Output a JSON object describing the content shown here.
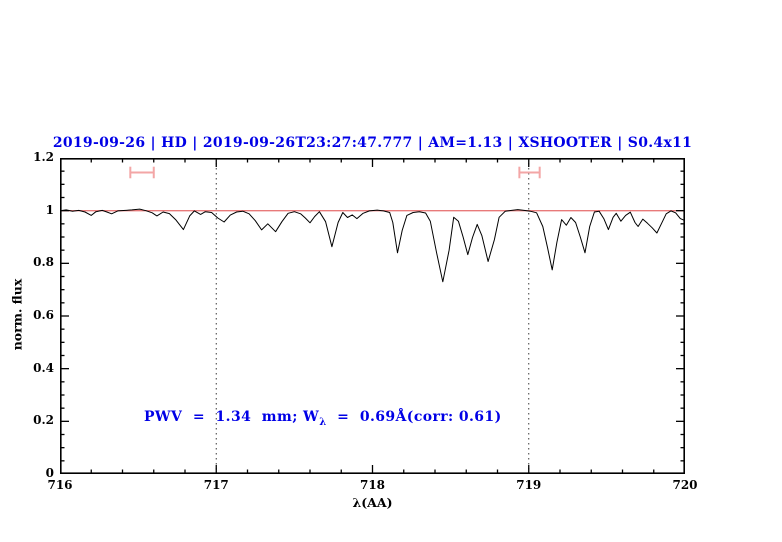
{
  "title": "2019-09-26 | HD | 2019-09-26T23:27:47.777 | AM=1.13 | XSHOOTER | S0.4x11",
  "annotation_parts": {
    "part1": "PWV  =  1.34  mm; W",
    "sub": "λ",
    "part2": "  =  0.69Å(corr: 0.61)"
  },
  "colors": {
    "title_blue": "#0000e6",
    "annotation_blue": "#0000e6",
    "continuum_red": "#e87a7a",
    "marker_pink": "#f3a6a6",
    "spectrum_black": "#000000",
    "dotted_line": "#3a3a3a",
    "frame": "#000000",
    "background": "#ffffff"
  },
  "chart_data": {
    "type": "line",
    "title": "2019-09-26 | HD | 2019-09-26T23:27:47.777 | AM=1.13 | XSHOOTER | S0.4x11",
    "xlabel": "λ(AA)",
    "ylabel": "norm. flux",
    "xlim": [
      716,
      720
    ],
    "ylim": [
      0,
      1.2
    ],
    "grid": false,
    "x_major_ticks": [
      716,
      717,
      718,
      719,
      720
    ],
    "x_tick_labels": [
      "716",
      "717",
      "718",
      "719",
      "720"
    ],
    "x_minor_step": 0.2,
    "y_major_ticks": [
      0,
      0.2,
      0.4,
      0.6,
      0.8,
      1.0,
      1.2
    ],
    "y_tick_labels": [
      "0",
      "0.2",
      "0.4",
      "0.6",
      "0.8",
      "1",
      "1.2"
    ],
    "y_minor_step": 0.05,
    "continuum_flux": 1.0,
    "vlines_dotted": [
      717,
      719
    ],
    "annotation": "PWV = 1.34 mm; W_λ = 0.69Å(corr: 0.61)",
    "annotation_position": {
      "x": 716.55,
      "y": 0.2
    },
    "range_markers": [
      {
        "x_from": 716.45,
        "x_to": 716.6,
        "y": 1.145,
        "cap_half": 0.022
      },
      {
        "x_from": 718.94,
        "x_to": 719.07,
        "y": 1.145,
        "cap_half": 0.022
      }
    ],
    "series": [
      {
        "name": "telluric spectrum",
        "points": [
          [
            716.0,
            1.0
          ],
          [
            716.04,
            1.003
          ],
          [
            716.08,
            0.998
          ],
          [
            716.12,
            1.001
          ],
          [
            716.16,
            0.995
          ],
          [
            716.2,
            0.982
          ],
          [
            716.23,
            0.996
          ],
          [
            716.27,
            1.001
          ],
          [
            716.3,
            0.995
          ],
          [
            716.33,
            0.988
          ],
          [
            716.37,
            0.999
          ],
          [
            716.42,
            1.001
          ],
          [
            716.46,
            1.003
          ],
          [
            716.51,
            1.006
          ],
          [
            716.55,
            1.0
          ],
          [
            716.59,
            0.992
          ],
          [
            716.62,
            0.98
          ],
          [
            716.66,
            0.995
          ],
          [
            716.7,
            0.989
          ],
          [
            716.74,
            0.966
          ],
          [
            716.79,
            0.928
          ],
          [
            716.83,
            0.98
          ],
          [
            716.86,
            0.999
          ],
          [
            716.9,
            0.986
          ],
          [
            716.93,
            0.996
          ],
          [
            716.97,
            0.993
          ],
          [
            717.01,
            0.972
          ],
          [
            717.05,
            0.957
          ],
          [
            717.09,
            0.983
          ],
          [
            717.13,
            0.995
          ],
          [
            717.17,
            0.998
          ],
          [
            717.21,
            0.988
          ],
          [
            717.25,
            0.962
          ],
          [
            717.29,
            0.927
          ],
          [
            717.33,
            0.95
          ],
          [
            717.38,
            0.92
          ],
          [
            717.42,
            0.958
          ],
          [
            717.46,
            0.99
          ],
          [
            717.5,
            0.996
          ],
          [
            717.54,
            0.988
          ],
          [
            717.57,
            0.972
          ],
          [
            717.6,
            0.954
          ],
          [
            717.63,
            0.978
          ],
          [
            717.66,
            0.996
          ],
          [
            717.7,
            0.958
          ],
          [
            717.74,
            0.863
          ],
          [
            717.78,
            0.955
          ],
          [
            717.81,
            0.993
          ],
          [
            717.84,
            0.974
          ],
          [
            717.87,
            0.984
          ],
          [
            717.9,
            0.97
          ],
          [
            717.94,
            0.99
          ],
          [
            717.98,
            0.999
          ],
          [
            718.03,
            1.002
          ],
          [
            718.07,
            0.999
          ],
          [
            718.11,
            0.993
          ],
          [
            718.13,
            0.955
          ],
          [
            718.16,
            0.84
          ],
          [
            718.19,
            0.925
          ],
          [
            718.22,
            0.982
          ],
          [
            718.26,
            0.993
          ],
          [
            718.3,
            0.996
          ],
          [
            718.34,
            0.991
          ],
          [
            718.37,
            0.96
          ],
          [
            718.41,
            0.84
          ],
          [
            718.45,
            0.73
          ],
          [
            718.49,
            0.85
          ],
          [
            718.52,
            0.975
          ],
          [
            718.55,
            0.96
          ],
          [
            718.58,
            0.9
          ],
          [
            718.61,
            0.833
          ],
          [
            718.64,
            0.898
          ],
          [
            718.67,
            0.948
          ],
          [
            718.7,
            0.905
          ],
          [
            718.74,
            0.807
          ],
          [
            718.78,
            0.89
          ],
          [
            718.81,
            0.975
          ],
          [
            718.85,
            0.998
          ],
          [
            718.89,
            1.001
          ],
          [
            718.93,
            1.004
          ],
          [
            718.97,
            1.001
          ],
          [
            719.01,
            0.998
          ],
          [
            719.05,
            0.992
          ],
          [
            719.09,
            0.94
          ],
          [
            719.12,
            0.86
          ],
          [
            719.15,
            0.775
          ],
          [
            719.18,
            0.88
          ],
          [
            719.21,
            0.966
          ],
          [
            719.24,
            0.945
          ],
          [
            719.27,
            0.974
          ],
          [
            719.3,
            0.955
          ],
          [
            719.33,
            0.9
          ],
          [
            719.36,
            0.84
          ],
          [
            719.39,
            0.94
          ],
          [
            719.42,
            0.995
          ],
          [
            719.45,
            0.998
          ],
          [
            719.48,
            0.97
          ],
          [
            719.51,
            0.928
          ],
          [
            719.54,
            0.975
          ],
          [
            719.56,
            0.99
          ],
          [
            719.59,
            0.96
          ],
          [
            719.62,
            0.982
          ],
          [
            719.65,
            0.994
          ],
          [
            719.68,
            0.955
          ],
          [
            719.7,
            0.94
          ],
          [
            719.73,
            0.968
          ],
          [
            719.76,
            0.952
          ],
          [
            719.79,
            0.935
          ],
          [
            719.82,
            0.915
          ],
          [
            719.85,
            0.952
          ],
          [
            719.88,
            0.988
          ],
          [
            719.91,
            0.999
          ],
          [
            719.94,
            0.992
          ],
          [
            719.97,
            0.97
          ],
          [
            720.0,
            0.962
          ]
        ]
      }
    ]
  }
}
